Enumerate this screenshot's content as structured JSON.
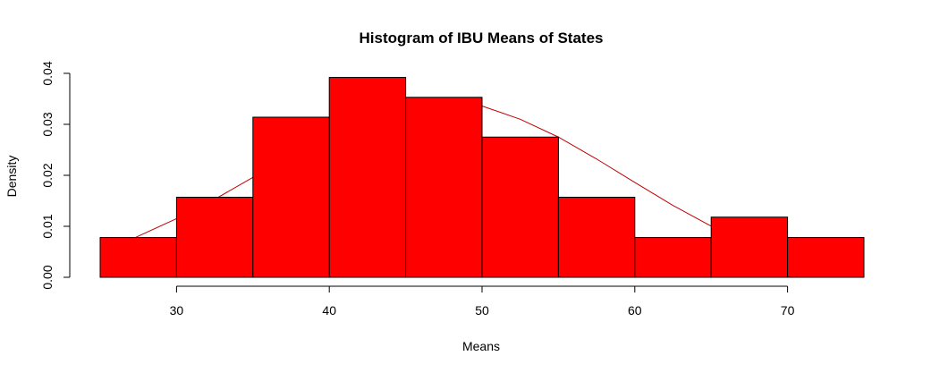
{
  "chart_data": {
    "type": "bar",
    "title": "Histogram of IBU Means of States",
    "xlabel": "Means",
    "ylabel": "Density",
    "bins": [
      {
        "x0": 25,
        "x1": 30,
        "density": 0.0078
      },
      {
        "x0": 30,
        "x1": 35,
        "density": 0.0157
      },
      {
        "x0": 35,
        "x1": 40,
        "density": 0.0314
      },
      {
        "x0": 40,
        "x1": 45,
        "density": 0.0392
      },
      {
        "x0": 45,
        "x1": 50,
        "density": 0.0353
      },
      {
        "x0": 50,
        "x1": 55,
        "density": 0.0275
      },
      {
        "x0": 55,
        "x1": 60,
        "density": 0.0157
      },
      {
        "x0": 60,
        "x1": 65,
        "density": 0.0078
      },
      {
        "x0": 65,
        "x1": 70,
        "density": 0.0118
      },
      {
        "x0": 70,
        "x1": 75,
        "density": 0.0078
      }
    ],
    "xlim": [
      25,
      75
    ],
    "ylim": [
      0,
      0.04
    ],
    "x_ticks": [
      "30",
      "40",
      "50",
      "60",
      "70"
    ],
    "y_ticks": [
      "0.00",
      "0.01",
      "0.02",
      "0.03",
      "0.04"
    ],
    "bar_color": "#ff0000",
    "curve": {
      "type": "normal density",
      "color": "#c00000",
      "x": [
        27.3,
        30,
        32.5,
        35,
        37.5,
        40,
        42.5,
        45,
        47.5,
        50,
        52.5,
        55,
        57.5,
        60,
        62.5,
        65.2
      ],
      "y": [
        0.0078,
        0.0115,
        0.0153,
        0.0196,
        0.0247,
        0.0297,
        0.0331,
        0.0349,
        0.0349,
        0.0336,
        0.031,
        0.0275,
        0.0232,
        0.0186,
        0.0141,
        0.0097
      ]
    }
  }
}
